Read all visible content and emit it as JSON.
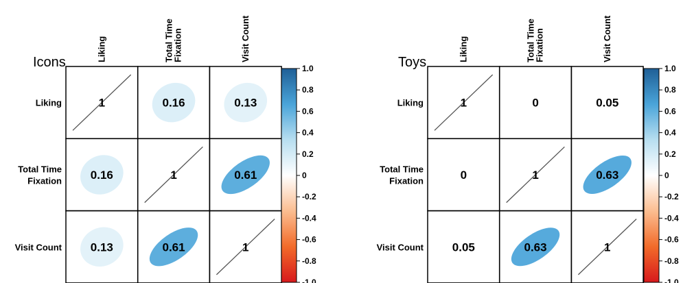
{
  "chart_data": [
    {
      "type": "heatmap",
      "title": "Icons",
      "variables": [
        "Liking",
        "Total Time Fixation",
        "Visit Count"
      ],
      "row_labels": [
        [
          "Liking"
        ],
        [
          "Total Time",
          "Fixation"
        ],
        [
          "Visit Count"
        ]
      ],
      "col_labels": [
        [
          "Liking"
        ],
        [
          "Total Time",
          "Fixation"
        ],
        [
          "Visit Count"
        ]
      ],
      "matrix": [
        [
          1,
          0.16,
          0.13
        ],
        [
          0.16,
          1,
          0.61
        ],
        [
          0.13,
          0.61,
          1
        ]
      ],
      "value_labels": [
        [
          "1",
          "0.16",
          "0.13"
        ],
        [
          "0.16",
          "1",
          "0.61"
        ],
        [
          "0.13",
          "0.61",
          "1"
        ]
      ],
      "glyphs": [
        [
          "diag",
          "ellipse",
          "ellipse"
        ],
        [
          "ellipse",
          "diag",
          "ellipse"
        ],
        [
          "ellipse",
          "ellipse",
          "diag"
        ]
      ]
    },
    {
      "type": "heatmap",
      "title": "Toys",
      "variables": [
        "Liking",
        "Total Time Fixation",
        "Visit Count"
      ],
      "row_labels": [
        [
          "Liking"
        ],
        [
          "Total Time",
          "Fixation"
        ],
        [
          "Visit Count"
        ]
      ],
      "col_labels": [
        [
          "Liking"
        ],
        [
          "Total Time",
          "Fixation"
        ],
        [
          "Visit Count"
        ]
      ],
      "matrix": [
        [
          1,
          0,
          0.05
        ],
        [
          0,
          1,
          0.63
        ],
        [
          0.05,
          0.63,
          1
        ]
      ],
      "value_labels": [
        [
          "1",
          "0",
          "0.05"
        ],
        [
          "0",
          "1",
          "0.63"
        ],
        [
          "0.05",
          "0.63",
          "1"
        ]
      ],
      "glyphs": [
        [
          "diag",
          "none",
          "none"
        ],
        [
          "none",
          "diag",
          "ellipse"
        ],
        [
          "none",
          "ellipse",
          "diag"
        ]
      ]
    }
  ],
  "colorbar": {
    "range": [
      -1,
      1
    ],
    "ticks": [
      "1.0",
      "0.8",
      "0.6",
      "0.4",
      "0.2",
      "0",
      "-0.2",
      "-0.4",
      "-0.6",
      "-0.8",
      "-1.0"
    ],
    "colors": [
      "#d7191c",
      "#f26b2a",
      "#fbbd90",
      "#ffffff",
      "#b7def0",
      "#4aa4d9",
      "#1f5f96"
    ]
  }
}
